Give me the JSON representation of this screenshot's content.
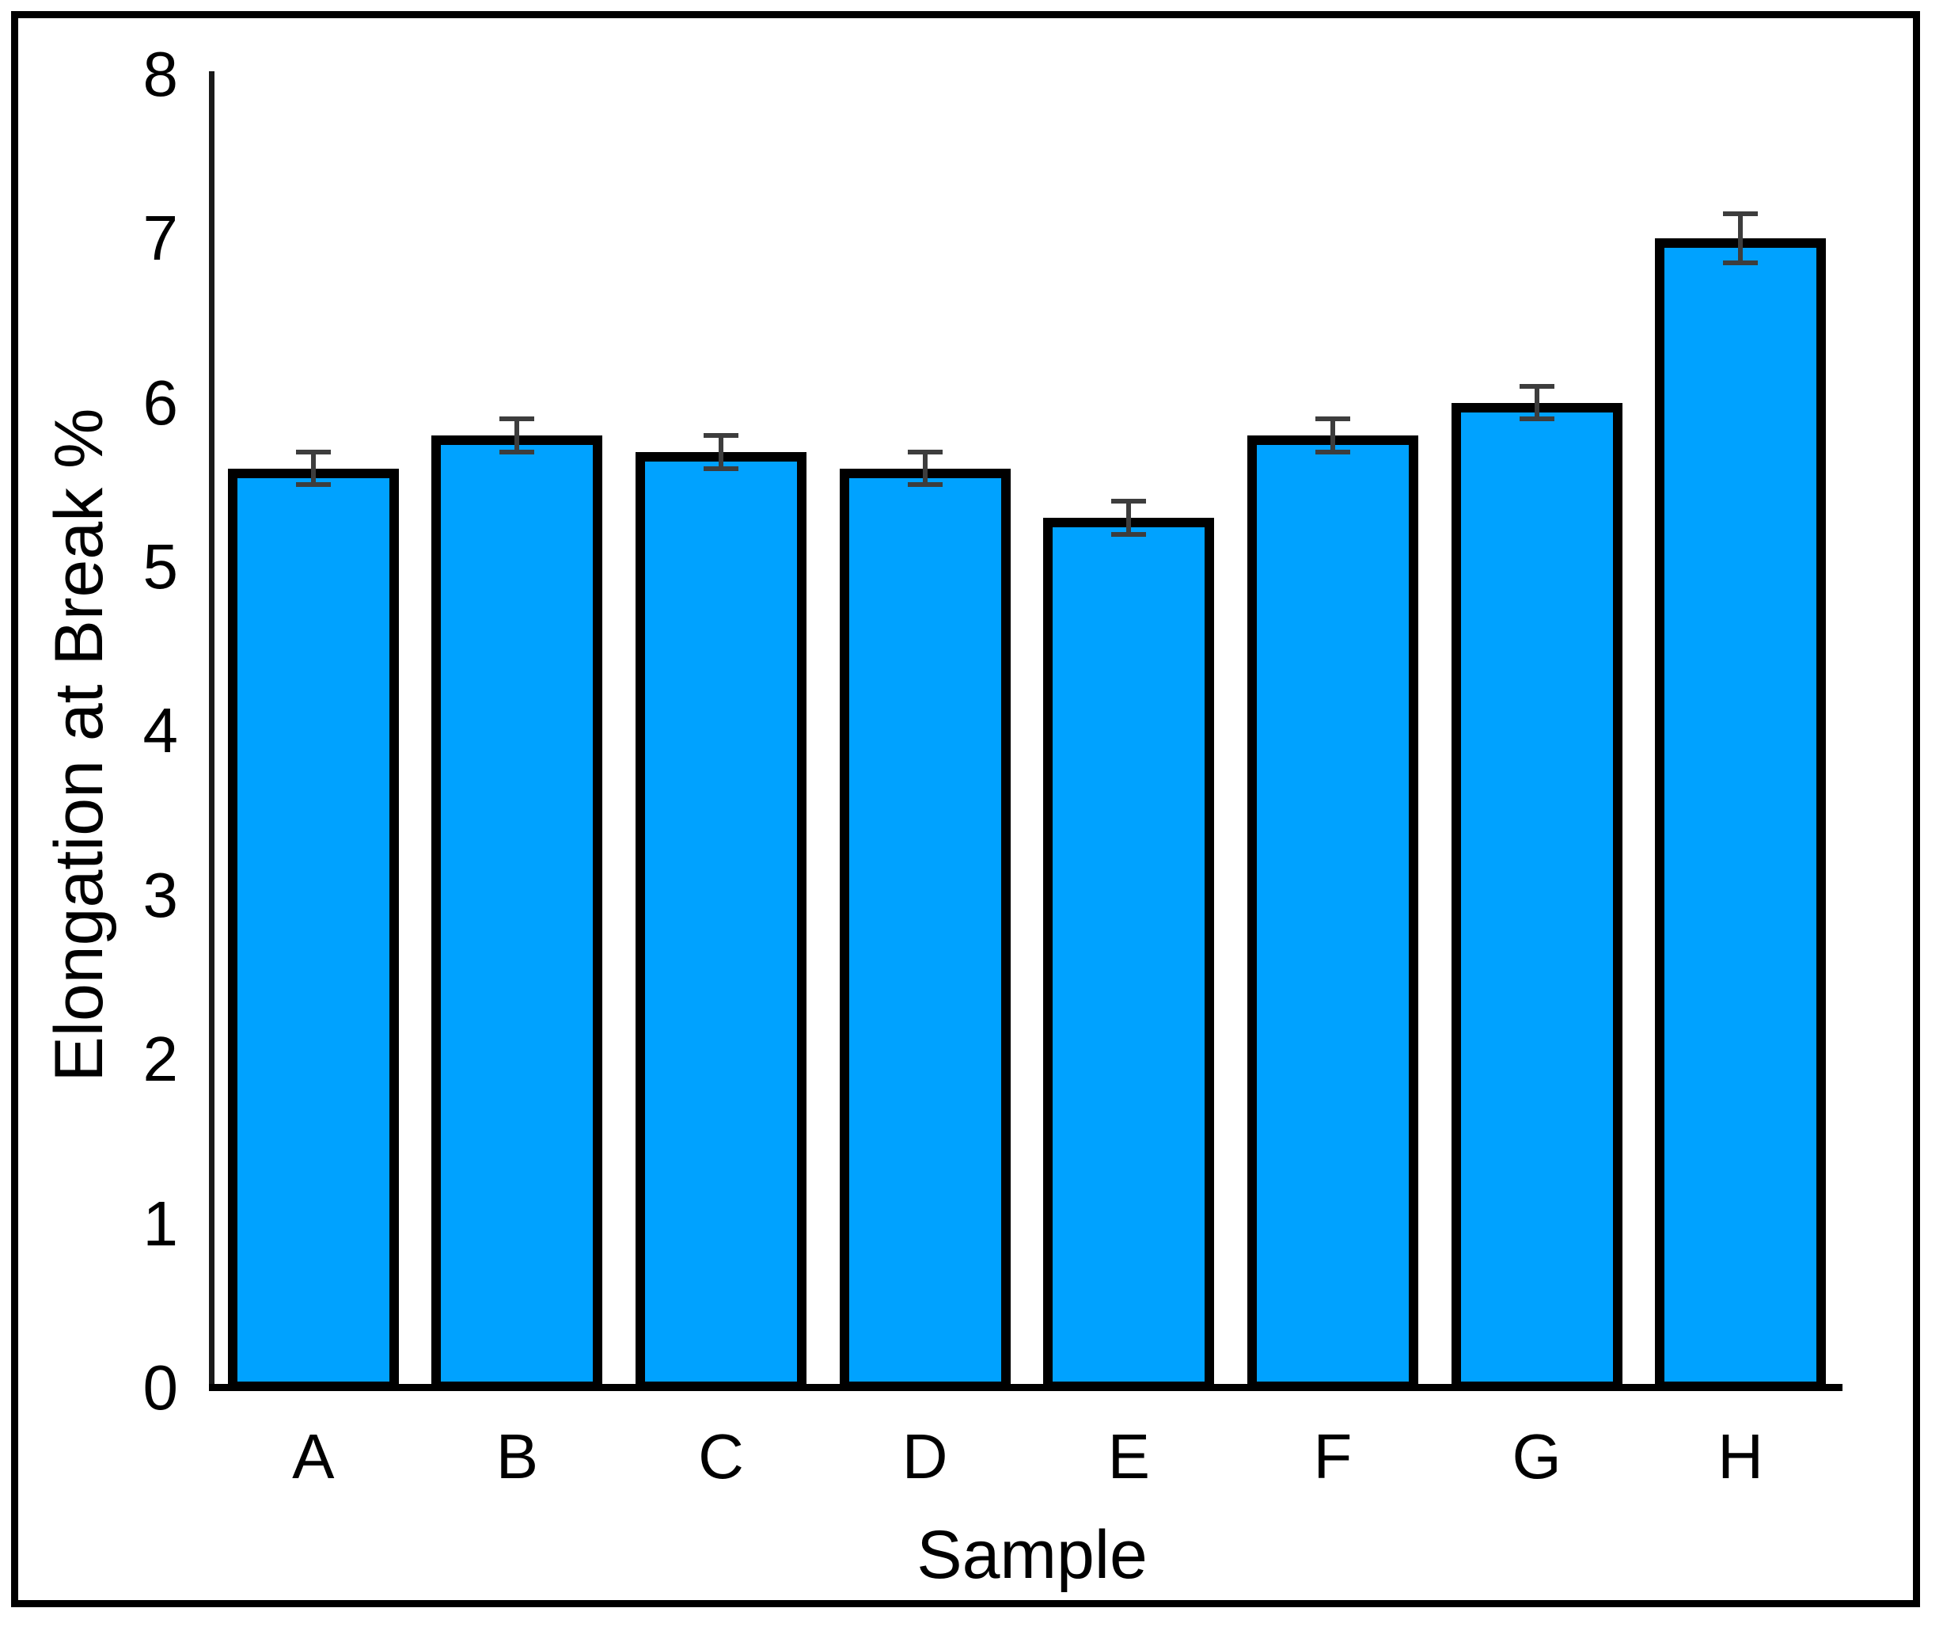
{
  "figure": {
    "background": "#ffffff",
    "border_color": "#000000"
  },
  "chart_data": {
    "type": "bar",
    "title": "",
    "categories": [
      "A",
      "B",
      "C",
      "D",
      "E",
      "F",
      "G",
      "H"
    ],
    "values": [
      5.6,
      5.8,
      5.7,
      5.6,
      5.3,
      5.8,
      6.0,
      7.0
    ],
    "errors": [
      0.1,
      0.1,
      0.1,
      0.1,
      0.1,
      0.1,
      0.1,
      0.15
    ],
    "xlabel": "Sample",
    "ylabel": "Elongation at Break %",
    "ylim": [
      0,
      8
    ],
    "yticks": [
      0,
      1,
      2,
      3,
      4,
      5,
      6,
      7,
      8
    ],
    "grid": false,
    "legend_position": "none",
    "bar_color": "#00A2FF",
    "bar_border_color": "#000000",
    "error_bar_color": "#3d3d3d"
  }
}
